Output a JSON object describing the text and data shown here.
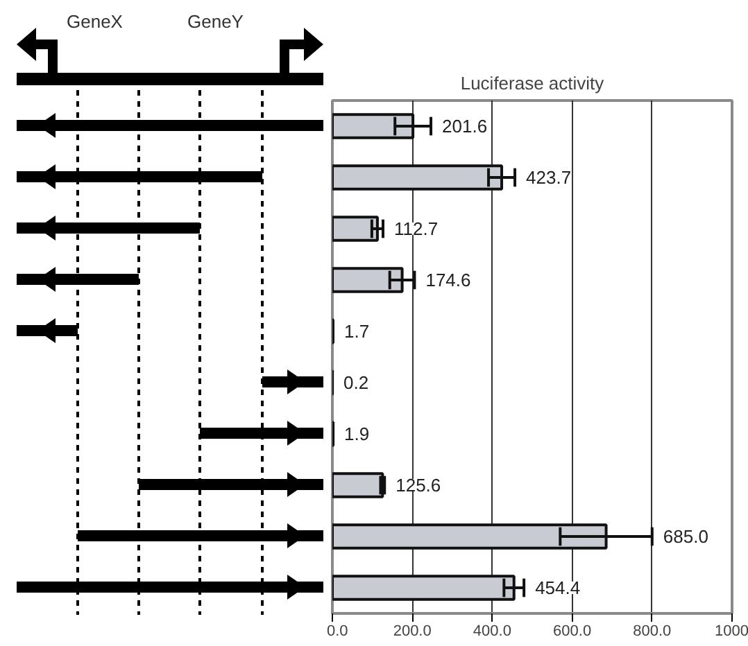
{
  "chart_data": {
    "type": "bar",
    "orientation": "horizontal",
    "title": "Luciferase activity",
    "categories": [
      null,
      null,
      null,
      null,
      null,
      null,
      null,
      null,
      null,
      null
    ],
    "values": [
      201.6,
      423.7,
      112.7,
      174.6,
      1.7,
      0.2,
      1.9,
      125.6,
      685.0,
      454.4
    ],
    "errors": [
      45,
      33,
      14,
      31,
      null,
      null,
      null,
      5,
      115,
      25
    ],
    "value_labels": [
      "201.6",
      "423.7",
      "112.7",
      "174.6",
      "1.7",
      "0.2",
      "1.9",
      "125.6",
      "685.0",
      "454.4"
    ],
    "color": "#c8ccd2",
    "xlim": [
      0,
      1000
    ],
    "xticks": [
      {
        "value": 0,
        "label": "0.0"
      },
      {
        "value": 200,
        "label": "200.0"
      },
      {
        "value": 400,
        "label": "400.0"
      },
      {
        "value": 600,
        "label": "600.0"
      },
      {
        "value": 800,
        "label": "800.0"
      },
      {
        "value": 1000,
        "label": "1000"
      }
    ],
    "grid": "x",
    "annotations": [
      "GeneX",
      "GeneY"
    ]
  }
}
